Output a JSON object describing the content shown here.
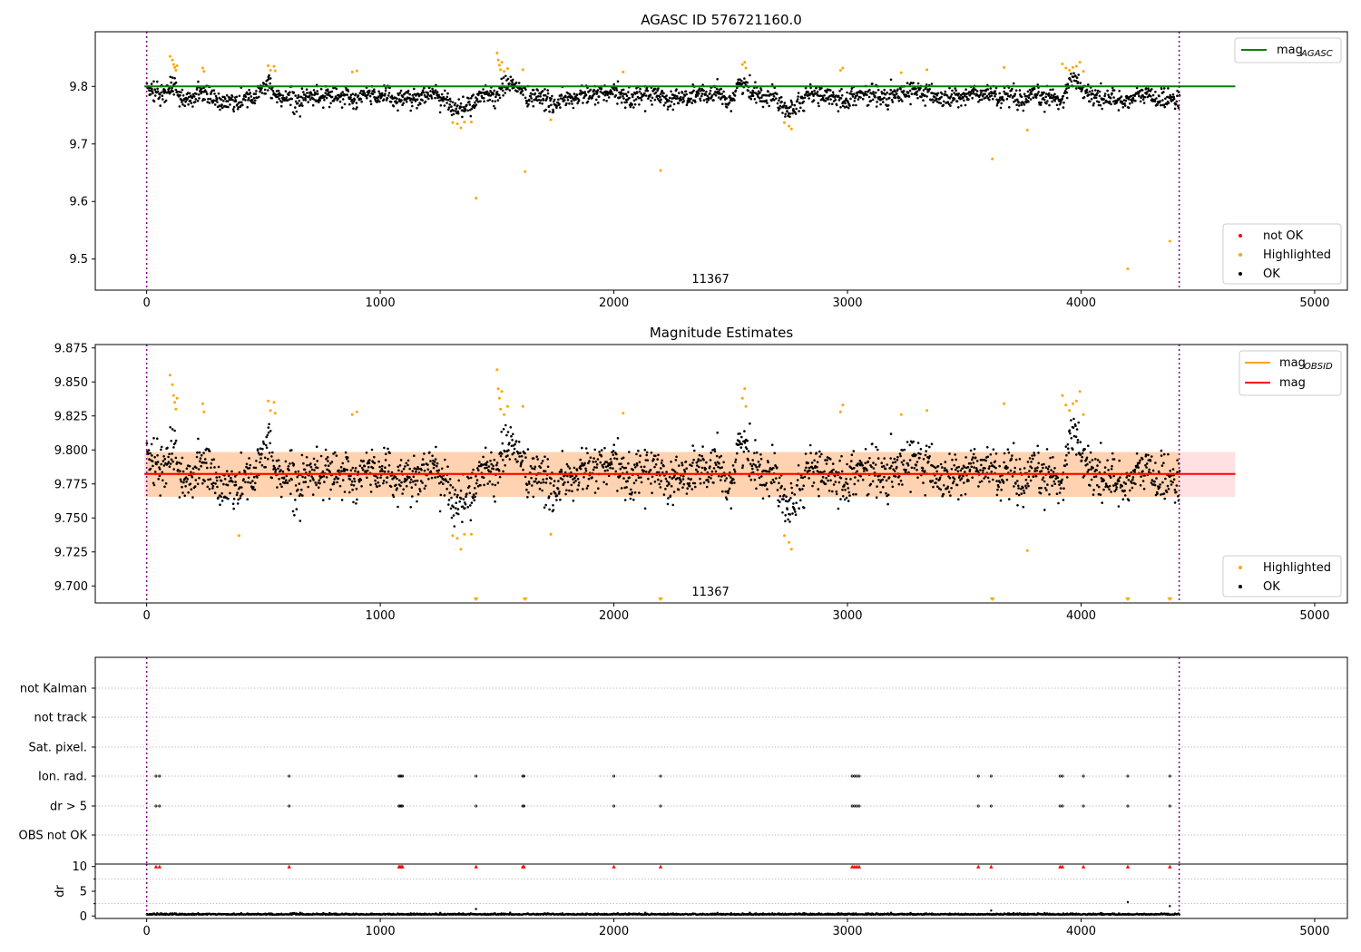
{
  "chart_data": [
    {
      "type": "scatter",
      "title": "AGASC ID 576721160.0",
      "xlim": [
        -220,
        5140
      ],
      "ylim": [
        9.446,
        9.895
      ],
      "xticks": [
        0,
        1000,
        2000,
        3000,
        4000,
        5000
      ],
      "yticks": [
        9.5,
        9.6,
        9.7,
        9.8
      ],
      "ytick_labels": [
        "9.5",
        "9.6",
        "9.7",
        "9.8"
      ],
      "obsid_label": "11367",
      "obsid_label_x": 2200,
      "obs_bounds": [
        0,
        4420
      ],
      "ref_line": {
        "label": "mag",
        "subscript": "AGASC",
        "value": 9.8,
        "x_range": [
          -10,
          4660
        ],
        "color": "#008000"
      },
      "legend_top": [
        {
          "label": "mag",
          "subscript": "AGASC",
          "kind": "line",
          "color": "#008000"
        }
      ],
      "legend_bottom": [
        {
          "label": "not OK",
          "kind": "dot",
          "color": "#ff0000"
        },
        {
          "label": "Highlighted",
          "kind": "dot",
          "color": "#ffa500"
        },
        {
          "label": "OK",
          "kind": "dot",
          "color": "#000000"
        }
      ],
      "highlighted_points": [
        [
          100,
          9.852
        ],
        [
          110,
          9.846
        ],
        [
          115,
          9.838
        ],
        [
          120,
          9.833
        ],
        [
          125,
          9.828
        ],
        [
          130,
          9.836
        ],
        [
          240,
          9.832
        ],
        [
          245,
          9.826
        ],
        [
          520,
          9.836
        ],
        [
          530,
          9.828
        ],
        [
          545,
          9.835
        ],
        [
          550,
          9.827
        ],
        [
          880,
          9.825
        ],
        [
          900,
          9.827
        ],
        [
          1310,
          9.737
        ],
        [
          1330,
          9.735
        ],
        [
          1345,
          9.728
        ],
        [
          1360,
          9.738
        ],
        [
          1390,
          9.738
        ],
        [
          1410,
          9.606
        ],
        [
          1500,
          9.858
        ],
        [
          1505,
          9.846
        ],
        [
          1510,
          9.837
        ],
        [
          1515,
          9.829
        ],
        [
          1520,
          9.842
        ],
        [
          1530,
          9.826
        ],
        [
          1545,
          9.831
        ],
        [
          1610,
          9.829
        ],
        [
          1620,
          9.652
        ],
        [
          1730,
          9.742
        ],
        [
          2040,
          9.825
        ],
        [
          2200,
          9.654
        ],
        [
          2550,
          9.838
        ],
        [
          2560,
          9.842
        ],
        [
          2565,
          9.832
        ],
        [
          2730,
          9.737
        ],
        [
          2750,
          9.731
        ],
        [
          2760,
          9.726
        ],
        [
          2970,
          9.828
        ],
        [
          2980,
          9.832
        ],
        [
          3230,
          9.824
        ],
        [
          3340,
          9.829
        ],
        [
          3620,
          9.674
        ],
        [
          3670,
          9.833
        ],
        [
          3770,
          9.724
        ],
        [
          3920,
          9.839
        ],
        [
          3935,
          9.832
        ],
        [
          3950,
          9.828
        ],
        [
          3965,
          9.833
        ],
        [
          3980,
          9.835
        ],
        [
          3995,
          9.842
        ],
        [
          4010,
          9.826
        ],
        [
          4200,
          9.483
        ],
        [
          4380,
          9.531
        ]
      ]
    },
    {
      "type": "scatter",
      "title": "Magnitude Estimates",
      "xlim": [
        -220,
        5140
      ],
      "ylim": [
        9.6875,
        9.8775
      ],
      "xticks": [
        0,
        1000,
        2000,
        3000,
        4000,
        5000
      ],
      "yticks": [
        9.7,
        9.725,
        9.75,
        9.775,
        9.8,
        9.825,
        9.85,
        9.875
      ],
      "ytick_labels": [
        "9.700",
        "9.725",
        "9.750",
        "9.775",
        "9.800",
        "9.825",
        "9.850",
        "9.875"
      ],
      "obsid_label": "11367",
      "obsid_label_x": 2200,
      "obs_bounds": [
        0,
        4420
      ],
      "mag_line": {
        "value": 9.7823,
        "x_range": [
          -10,
          4660
        ],
        "color": "#ff0000"
      },
      "mag_obsid_line": {
        "value": 9.7823,
        "x_range": [
          0,
          4420
        ],
        "color": "#ffa500"
      },
      "band_obsid": {
        "low": 9.7655,
        "high": 9.7985,
        "x_range": [
          0,
          4420
        ],
        "color": "#ffa500"
      },
      "band_mag": {
        "low": 9.7655,
        "high": 9.7985,
        "x_range": [
          -10,
          4660
        ],
        "color": "#ff9aa2"
      },
      "legend_top": [
        {
          "label": "mag",
          "subscript": "OBSID",
          "kind": "line",
          "color": "#ffa500"
        },
        {
          "label": "mag",
          "subscript": "",
          "kind": "line",
          "color": "#ff0000"
        }
      ],
      "legend_bottom": [
        {
          "label": "Highlighted",
          "kind": "dot",
          "color": "#ffa500"
        },
        {
          "label": "OK",
          "kind": "dot",
          "color": "#000000"
        }
      ],
      "highlighted_points": [
        [
          100,
          9.855
        ],
        [
          110,
          9.848
        ],
        [
          115,
          9.84
        ],
        [
          120,
          9.835
        ],
        [
          125,
          9.83
        ],
        [
          130,
          9.838
        ],
        [
          240,
          9.834
        ],
        [
          245,
          9.828
        ],
        [
          395,
          9.737
        ],
        [
          520,
          9.836
        ],
        [
          530,
          9.829
        ],
        [
          545,
          9.835
        ],
        [
          550,
          9.827
        ],
        [
          880,
          9.826
        ],
        [
          900,
          9.828
        ],
        [
          1310,
          9.737
        ],
        [
          1330,
          9.735
        ],
        [
          1345,
          9.727
        ],
        [
          1360,
          9.738
        ],
        [
          1390,
          9.738
        ],
        [
          1500,
          9.859
        ],
        [
          1505,
          9.845
        ],
        [
          1510,
          9.838
        ],
        [
          1515,
          9.83
        ],
        [
          1520,
          9.843
        ],
        [
          1530,
          9.826
        ],
        [
          1545,
          9.832
        ],
        [
          1610,
          9.832
        ],
        [
          1730,
          9.738
        ],
        [
          2040,
          9.827
        ],
        [
          2550,
          9.838
        ],
        [
          2560,
          9.845
        ],
        [
          2565,
          9.832
        ],
        [
          2730,
          9.737
        ],
        [
          2750,
          9.732
        ],
        [
          2760,
          9.727
        ],
        [
          2970,
          9.828
        ],
        [
          2980,
          9.833
        ],
        [
          3230,
          9.826
        ],
        [
          3340,
          9.829
        ],
        [
          3670,
          9.834
        ],
        [
          3770,
          9.726
        ],
        [
          3920,
          9.84
        ],
        [
          3935,
          9.833
        ],
        [
          3950,
          9.829
        ],
        [
          3965,
          9.834
        ],
        [
          3980,
          9.836
        ],
        [
          3995,
          9.843
        ],
        [
          4010,
          9.826
        ]
      ],
      "out_of_range_markers_x": [
        1410,
        1620,
        2200,
        3620,
        4200,
        4380
      ]
    },
    {
      "type": "scatter",
      "title": "",
      "xlim": [
        -220,
        5140
      ],
      "xticks": [
        0,
        1000,
        2000,
        3000,
        4000,
        5000
      ],
      "obs_bounds": [
        0,
        4420
      ],
      "flag_rows": [
        "not Kalman",
        "not track",
        "Sat. pixel.",
        "Ion. rad.",
        "dr > 5",
        "OBS not OK"
      ],
      "flag_points": {
        "Ion. rad.": [
          40,
          55,
          610,
          1080,
          1085,
          1090,
          1095,
          1410,
          1610,
          1615,
          2000,
          2200,
          3020,
          3030,
          3040,
          3050,
          3560,
          3615,
          3910,
          3920,
          4010,
          4200,
          4380
        ],
        "dr > 5": [
          40,
          55,
          610,
          1080,
          1085,
          1090,
          1095,
          1410,
          1610,
          1615,
          2000,
          2200,
          3020,
          3030,
          3040,
          3050,
          3560,
          3615,
          3910,
          3920,
          4010,
          4200,
          4380
        ]
      },
      "dr_ylabel": "dr",
      "dr_ylim": [
        -0.5,
        10.5
      ],
      "dr_yticks": [
        0,
        5,
        10
      ],
      "dr_clipped_x": [
        40,
        55,
        610,
        1080,
        1085,
        1090,
        1095,
        1410,
        1610,
        1615,
        2000,
        2200,
        3020,
        3030,
        3040,
        3050,
        3560,
        3615,
        3910,
        3920,
        4010,
        4200,
        4380
      ],
      "dr_outliers": [
        [
          1410,
          1.4
        ],
        [
          3615,
          1.1
        ],
        [
          4200,
          2.8
        ],
        [
          4380,
          2.0
        ]
      ]
    }
  ]
}
